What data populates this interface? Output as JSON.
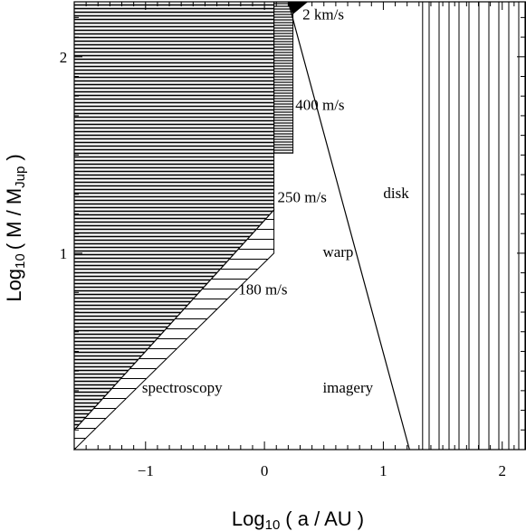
{
  "chart_data": {
    "type": "area",
    "title": "",
    "xlabel_main": "Log",
    "xlabel_sub": "10",
    "xlabel_rest": "( a / AU )",
    "ylabel_main": "Log",
    "ylabel_sub": "10",
    "ylabel_mid": "( M / M",
    "ylabel_msub": "Jup",
    "ylabel_rest": ")",
    "xlim": [
      -1.6,
      2.2
    ],
    "ylim": [
      0.0,
      2.28
    ],
    "x_ticks": [
      {
        "value": -1,
        "label": "−1"
      },
      {
        "value": 0,
        "label": "0"
      },
      {
        "value": 1,
        "label": "1"
      },
      {
        "value": 2,
        "label": "2"
      }
    ],
    "y_ticks": [
      {
        "value": 1,
        "label": "1"
      },
      {
        "value": 2,
        "label": "2"
      }
    ],
    "regions": [
      {
        "name": "spectroscopy",
        "hatch": "dense-horizontal",
        "polygon": [
          [
            -1.6,
            2.28
          ],
          [
            0.08,
            2.28
          ],
          [
            0.08,
            1.22
          ],
          [
            -1.6,
            0.1
          ]
        ]
      },
      {
        "name": "180 m/s band",
        "hatch": "diagonal",
        "polygon": [
          [
            -1.6,
            0.0
          ],
          [
            0.08,
            1.0
          ],
          [
            0.08,
            1.22
          ],
          [
            -1.6,
            0.1
          ]
        ]
      },
      {
        "name": "400 m/s wedge",
        "hatch": "dense-horizontal",
        "polygon": [
          [
            0.08,
            2.28
          ],
          [
            0.24,
            2.28
          ],
          [
            0.24,
            1.51
          ],
          [
            0.08,
            1.51
          ]
        ]
      },
      {
        "name": "2 km/s wedge",
        "hatch": "solid",
        "polygon": [
          [
            0.2,
            2.28
          ],
          [
            0.36,
            2.28
          ],
          [
            0.24,
            2.22
          ]
        ]
      },
      {
        "name": "disk",
        "hatch": "vertical",
        "polygon": [
          [
            1.33,
            2.28
          ],
          [
            2.2,
            2.28
          ],
          [
            2.2,
            0.0
          ],
          [
            1.33,
            0.0
          ]
        ]
      }
    ],
    "lines": [
      {
        "name": "imagery boundary",
        "points": [
          [
            0.2,
            2.28
          ],
          [
            1.22,
            0.0
          ]
        ]
      }
    ],
    "annotations": [
      {
        "text": "2 km/s",
        "x": 0.32,
        "y": 2.19
      },
      {
        "text": "400 m/s",
        "x": 0.26,
        "y": 1.73
      },
      {
        "text": "250 m/s",
        "x": 0.11,
        "y": 1.26
      },
      {
        "text": "180 m/s",
        "x": -0.22,
        "y": 0.79
      },
      {
        "text": "warp",
        "x": 0.49,
        "y": 0.98
      },
      {
        "text": "disk",
        "x": 1.0,
        "y": 1.28
      },
      {
        "text": "spectroscopy",
        "x": -1.03,
        "y": 0.29
      },
      {
        "text": "imagery",
        "x": 0.49,
        "y": 0.29
      }
    ]
  }
}
